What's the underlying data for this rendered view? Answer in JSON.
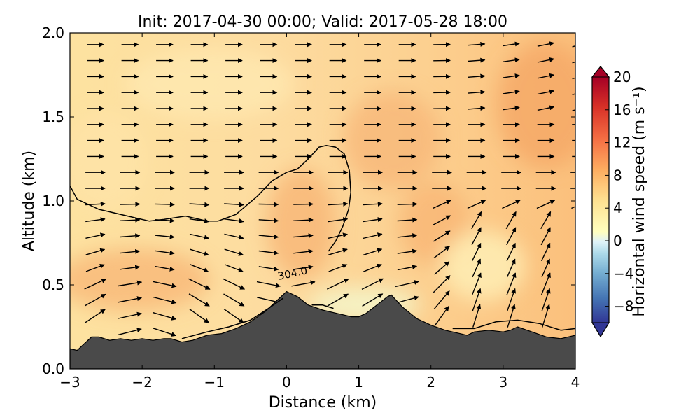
{
  "chart_data": {
    "type": "heatmap",
    "title": "Init: 2017-04-30 00:00; Valid: 2017-05-28 18:00",
    "xlabel": "Distance (km)",
    "ylabel": "Altitude (km)",
    "xlim": [
      -3,
      4
    ],
    "ylim": [
      0,
      2
    ],
    "x_ticks": [
      "−3",
      "−2",
      "−1",
      "0",
      "1",
      "2",
      "3",
      "4"
    ],
    "y_ticks": [
      "0.0",
      "0.5",
      "1.0",
      "1.5",
      "2.0"
    ],
    "colorbar": {
      "label": "Horizontal wind speed (m s⁻¹)",
      "range": [
        -10,
        20
      ],
      "ticks": [
        "20",
        "16",
        "12",
        "8",
        "4",
        "0",
        "−4",
        "−8"
      ],
      "cmap": "RdYlBu_r",
      "extend": "both"
    },
    "contour_label": "304.0",
    "terrain": {
      "x": [
        -3,
        -2.9,
        -2.8,
        -2.7,
        -2.6,
        -2.45,
        -2.3,
        -2.15,
        -2.0,
        -1.85,
        -1.7,
        -1.6,
        -1.45,
        -1.3,
        -1.1,
        -0.9,
        -0.7,
        -0.5,
        -0.3,
        -0.15,
        0.0,
        0.15,
        0.3,
        0.5,
        0.7,
        0.9,
        1.0,
        1.1,
        1.25,
        1.4,
        1.45,
        1.6,
        1.8,
        2.0,
        2.2,
        2.4,
        2.5,
        2.6,
        2.8,
        3.0,
        3.1,
        3.2,
        3.4,
        3.6,
        3.8,
        4.0
      ],
      "y": [
        0.12,
        0.11,
        0.15,
        0.19,
        0.19,
        0.17,
        0.18,
        0.17,
        0.18,
        0.17,
        0.18,
        0.18,
        0.16,
        0.17,
        0.2,
        0.21,
        0.24,
        0.28,
        0.34,
        0.4,
        0.46,
        0.43,
        0.38,
        0.35,
        0.33,
        0.31,
        0.31,
        0.33,
        0.38,
        0.43,
        0.44,
        0.37,
        0.3,
        0.26,
        0.23,
        0.21,
        0.2,
        0.22,
        0.23,
        0.22,
        0.23,
        0.25,
        0.22,
        0.19,
        0.18,
        0.2
      ]
    },
    "contour_304": {
      "x": [
        -3.0,
        -2.9,
        -2.6,
        -2.2,
        -1.9,
        -1.7,
        -1.4,
        -1.1,
        -0.95,
        -0.7,
        -0.4,
        -0.2,
        0.0,
        0.15,
        0.3,
        0.45,
        0.55,
        0.68,
        0.8,
        0.87,
        0.89,
        0.86,
        0.78,
        0.68,
        0.58
      ],
      "y": [
        1.09,
        1.01,
        0.95,
        0.91,
        0.88,
        0.89,
        0.91,
        0.88,
        0.88,
        0.92,
        1.03,
        1.12,
        1.17,
        1.19,
        1.25,
        1.32,
        1.33,
        1.32,
        1.28,
        1.18,
        1.05,
        0.95,
        0.85,
        0.76,
        0.7
      ]
    },
    "contour_304_lower": {
      "x": [
        -1.45,
        -1.1,
        -0.8,
        -0.5,
        -0.25,
        -0.05
      ],
      "y": [
        0.18,
        0.22,
        0.25,
        0.29,
        0.36,
        0.42
      ]
    },
    "contour_304_mid": {
      "x": [
        0.35,
        0.5,
        0.65
      ],
      "y": [
        0.38,
        0.38,
        0.36
      ]
    },
    "contour_304_right": {
      "x": [
        2.3,
        2.6,
        2.9,
        3.2,
        3.5,
        3.8,
        4.0
      ],
      "y": [
        0.24,
        0.24,
        0.28,
        0.29,
        0.27,
        0.23,
        0.24
      ]
    },
    "wind_vectors_note": "quiver field of horizontal/vertical wind"
  }
}
